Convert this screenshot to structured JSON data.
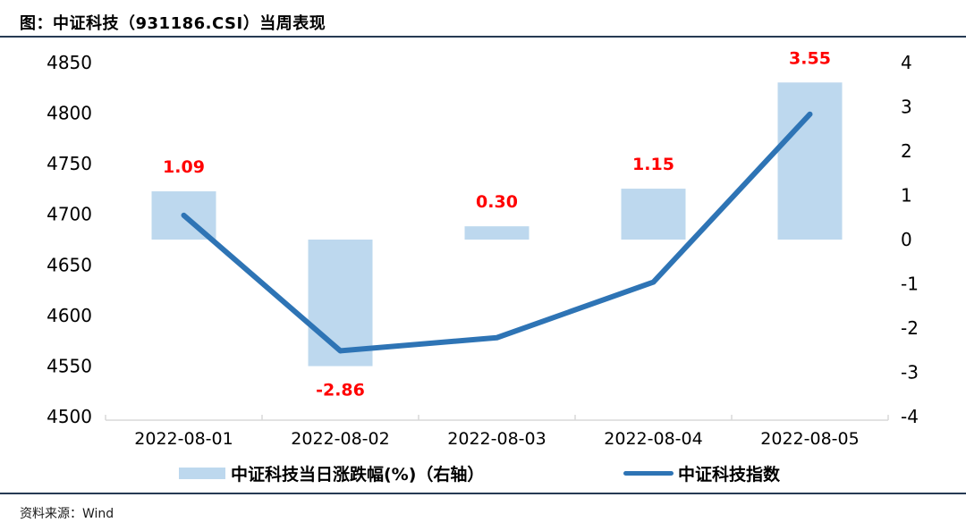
{
  "page": {
    "title": "图：中证科技（931186.CSI）当周表现",
    "source": "资料来源：Wind"
  },
  "colors": {
    "bar_fill": "#BDD8EE",
    "line": "#2E74B5",
    "data_label": "#FF0000",
    "axis_text": "#000000",
    "axis_line": "#D9D9D9",
    "rule": "#263A53"
  },
  "legend": {
    "items": [
      {
        "swatch": "bar-swatch",
        "label": "中证科技当日涨跌幅(%)（右轴）"
      },
      {
        "swatch": "line-swatch",
        "label": "中证科技指数"
      }
    ]
  },
  "chart_data": {
    "type": "bar+line combo",
    "categories": [
      "2022-08-01",
      "2022-08-02",
      "2022-08-03",
      "2022-08-04",
      "2022-08-05"
    ],
    "series": [
      {
        "name": "中证科技当日涨跌幅(%)（右轴）",
        "type": "bar",
        "axis": "right",
        "values": [
          1.09,
          -2.86,
          0.3,
          1.15,
          3.55
        ],
        "data_labels": [
          "1.09",
          "-2.86",
          "0.30",
          "1.15",
          "3.55"
        ]
      },
      {
        "name": "中证科技指数",
        "type": "line",
        "axis": "left",
        "values": [
          4699,
          4565,
          4578,
          4633,
          4799
        ]
      }
    ],
    "left_axis": {
      "min": 4500,
      "max": 4850,
      "step": 50,
      "ticks": [
        4850,
        4800,
        4750,
        4700,
        4650,
        4600,
        4550,
        4500
      ]
    },
    "right_axis": {
      "min": -4,
      "max": 4,
      "step": 1,
      "ticks": [
        4,
        3,
        2,
        1,
        0,
        -1,
        -2,
        -3,
        -4
      ]
    },
    "grid": false,
    "legend_position": "bottom",
    "title": "图：中证科技（931186.CSI）当周表现"
  }
}
